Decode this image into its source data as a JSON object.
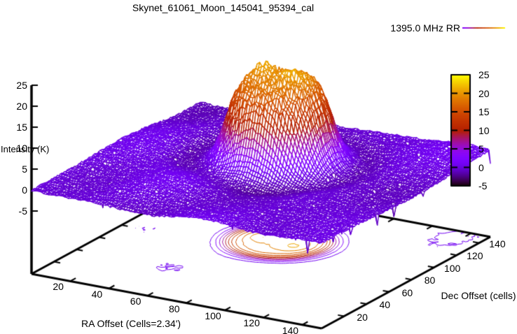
{
  "chart_data": {
    "type": "3d-surface-with-base-contour",
    "title": "Skynet_61061_Moon_145041_95394_cal",
    "legend": {
      "label": "1395.0 MHz RR",
      "position": "top-right"
    },
    "xlabel": "RA Offset (Cells=2.34')",
    "ylabel": "Dec Offset (cells)",
    "zlabel": "Intensity (K)",
    "x_ticks": [
      20,
      40,
      60,
      80,
      100,
      120,
      140
    ],
    "y_ticks": [
      20,
      40,
      60,
      80,
      100,
      120,
      140
    ],
    "z_ticks": [
      25,
      20,
      15,
      10,
      5,
      0,
      -5
    ],
    "x_range": [
      0,
      150
    ],
    "y_range": [
      0,
      150
    ],
    "z_range": [
      -5,
      25
    ],
    "grid": false,
    "colorbar": {
      "ticks": [
        25,
        20,
        15,
        10,
        5,
        0,
        -5
      ],
      "min": -5,
      "max": 25
    },
    "palette": {
      "name": "gnuplot rgbformulae 7,5,15",
      "stops": [
        "#000000",
        "#8004ff",
        "#b42000",
        "#dd6c00",
        "#ffff00"
      ]
    },
    "contour_levels": [
      1,
      3,
      5,
      7,
      9,
      11,
      13,
      15,
      17,
      19,
      21
    ],
    "surface_model": {
      "description": "Flat sky baseline near 0 K with ~1 K ripple; the Moon appears as a ragged flat-topped disk with two bumps",
      "moon_center_cells": [
        72,
        96
      ],
      "moon_disk_height_K": 18.3,
      "moon_disk_radius_cells": 24,
      "moon_edge_width_cells": 3,
      "moon_top_bumps": [
        {
          "center": [
            62,
            98
          ],
          "height_K": 3.0,
          "sigma2": 45
        },
        {
          "center": [
            81,
            94
          ],
          "height_K": 2.6,
          "sigma2": 55
        }
      ],
      "baseline_ripple_K": 1.3,
      "rim_dip_K": -1.2,
      "rim_dip_radius_cells": 40,
      "max_intensity_K": 21.5
    }
  }
}
